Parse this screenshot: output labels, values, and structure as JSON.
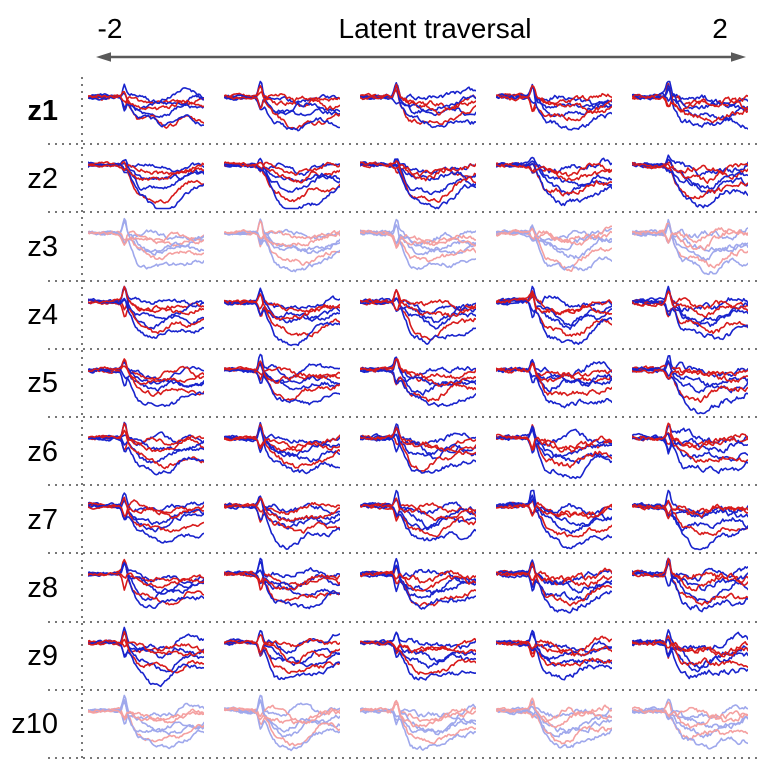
{
  "header": {
    "title": "Latent traversal",
    "left_tick": "-2",
    "right_tick": "2"
  },
  "styles": {
    "background": "#ffffff",
    "text_color": "#000000",
    "arrow_color": "#5a5a5a",
    "dot_color": "#777777"
  },
  "chart_data": {
    "type": "line",
    "title": "Latent traversal",
    "x_axis": {
      "label": "Latent traversal",
      "min": -2,
      "max": 2,
      "tick_labels": [
        "-2",
        "2"
      ],
      "n_columns": 5,
      "column_values": [
        -2,
        -1,
        0,
        1,
        2
      ]
    },
    "y_axis": {
      "visible": false
    },
    "legend": false,
    "grid_style": "dotted row separators and dotted left border",
    "rows": [
      {
        "label": "z1",
        "bold": true,
        "faded": false,
        "seed": 101,
        "dip": 0.35,
        "spike": 1.1
      },
      {
        "label": "z2",
        "bold": false,
        "faded": false,
        "seed": 202,
        "dip": 0.95,
        "spike": 0.5
      },
      {
        "label": "z3",
        "bold": false,
        "faded": true,
        "seed": 303,
        "dip": 0.6,
        "spike": 1.0
      },
      {
        "label": "z4",
        "bold": false,
        "faded": false,
        "seed": 404,
        "dip": 0.75,
        "spike": 1.2
      },
      {
        "label": "z5",
        "bold": false,
        "faded": false,
        "seed": 505,
        "dip": 0.55,
        "spike": 1.1
      },
      {
        "label": "z6",
        "bold": false,
        "faded": false,
        "seed": 606,
        "dip": 0.5,
        "spike": 1.2
      },
      {
        "label": "z7",
        "bold": false,
        "faded": false,
        "seed": 707,
        "dip": 0.55,
        "spike": 1.1
      },
      {
        "label": "z8",
        "bold": false,
        "faded": false,
        "seed": 808,
        "dip": 0.5,
        "spike": 1.3
      },
      {
        "label": "z9",
        "bold": false,
        "faded": false,
        "seed": 909,
        "dip": 0.6,
        "spike": 1.1
      },
      {
        "label": "z10",
        "bold": false,
        "faded": true,
        "seed": 1010,
        "dip": 0.6,
        "spike": 1.0
      }
    ],
    "traces_per_cell": 7,
    "trace_colors": [
      "blue",
      "red",
      "blue",
      "blue",
      "red",
      "blue",
      "red"
    ],
    "trace_level_offsets": [
      0,
      2,
      8,
      13,
      18,
      24,
      5
    ],
    "palette": {
      "blue": "#1823cd",
      "red": "#d81a1a",
      "faded_blue": "#9fa8ec",
      "faded_red": "#f4a0a0"
    },
    "waveform_model": {
      "points": 84,
      "baseline_frac": 0.27,
      "flat_until": 0.3,
      "spike_time": 0.315,
      "spike_width": 0.022,
      "dip_center": 0.62,
      "dip_width": 0.2
    }
  }
}
